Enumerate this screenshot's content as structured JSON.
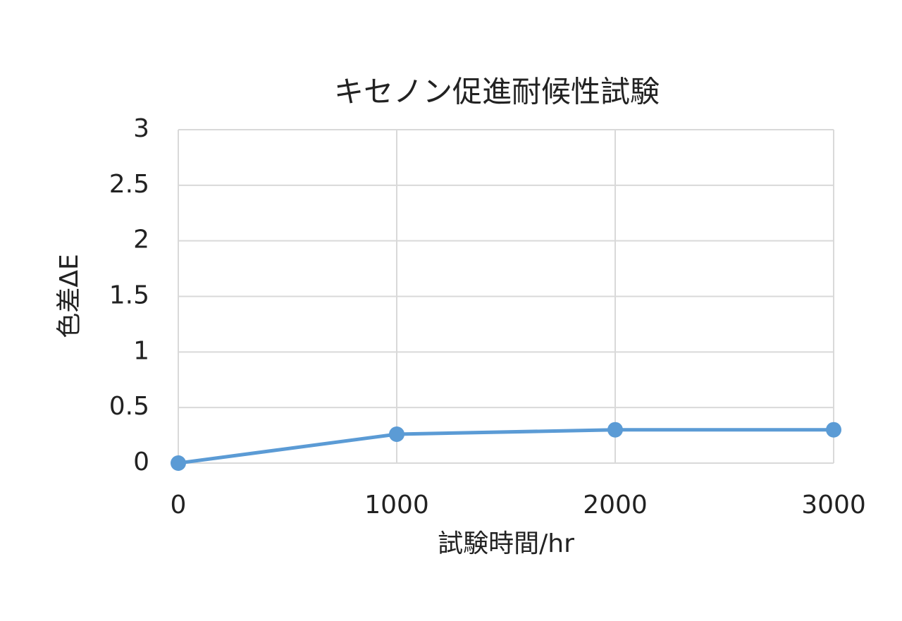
{
  "chart_data": {
    "type": "line",
    "title": "キセノン促進耐候性試験",
    "x_label": "試験時間/hr",
    "y_label": "色差ΔE",
    "x": [
      0,
      1000,
      2000,
      3000
    ],
    "values": [
      0,
      0.26,
      0.3,
      0.3
    ],
    "color": "#5b9bd5",
    "xlim": [
      0,
      3000
    ],
    "xticks": [
      0,
      1000,
      2000,
      3000
    ],
    "ylim": [
      0,
      3
    ],
    "yticks": [
      0,
      0.5,
      1,
      1.5,
      2,
      2.5,
      3
    ],
    "grid": true
  }
}
